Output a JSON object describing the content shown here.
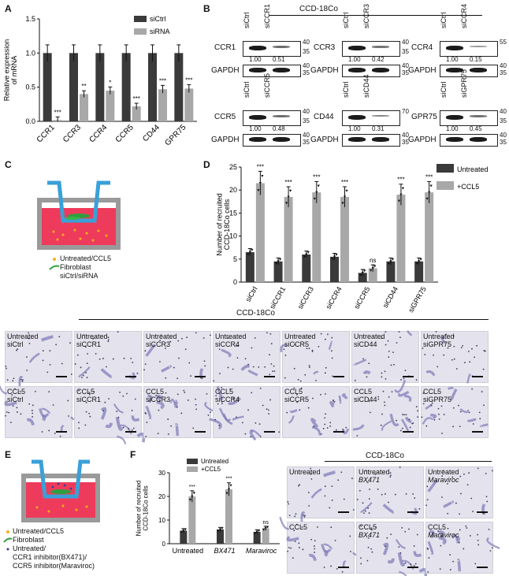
{
  "panels": {
    "A": "A",
    "B": "B",
    "C": "C",
    "D": "D",
    "E": "E",
    "F": "F"
  },
  "chart_data": [
    {
      "panel": "A",
      "type": "bar",
      "ylabel": "Relative expression of mRNA",
      "ylim": [
        0,
        1.5
      ],
      "yticks": [
        "0.0",
        "0.5",
        "1.0",
        "1.5"
      ],
      "categories": [
        "CCR1",
        "CCR3",
        "CCR4",
        "CCR5",
        "CD44",
        "GPR75"
      ],
      "series": [
        {
          "name": "siCtrl",
          "color": "#3a3a3a",
          "values": [
            1.0,
            1.0,
            1.0,
            1.0,
            1.0,
            1.0
          ]
        },
        {
          "name": "siRNA",
          "color": "#a8a8a8",
          "values": [
            0.02,
            0.4,
            0.45,
            0.22,
            0.47,
            0.48
          ]
        }
      ],
      "significance": [
        "***",
        "**",
        "*",
        "***",
        "***",
        "***"
      ]
    },
    {
      "panel": "D",
      "type": "bar",
      "ylabel": "Number of recruited CCD-18Co cells",
      "ylim": [
        0,
        25
      ],
      "yticks": [
        "0",
        "5",
        "10",
        "15",
        "20",
        "25"
      ],
      "categories": [
        "siCtrl",
        "siCCR1",
        "siCCR3",
        "siCCR4",
        "siCCR5",
        "siCD44",
        "siGPR75"
      ],
      "series": [
        {
          "name": "Untreated",
          "color": "#3a3a3a",
          "values": [
            6.5,
            4.5,
            6.0,
            5.5,
            2.0,
            4.5,
            4.5
          ]
        },
        {
          "name": "+CCL5",
          "color": "#a8a8a8",
          "values": [
            21.5,
            18.5,
            19.5,
            18.5,
            3.0,
            19.0,
            19.5
          ]
        }
      ],
      "significance": [
        "***",
        "***",
        "***",
        "***",
        "ns",
        "***",
        "***"
      ]
    },
    {
      "panel": "F",
      "type": "bar",
      "ylabel": "Number of recruited CCD-18Co cells",
      "ylim": [
        0,
        30
      ],
      "yticks": [
        "0",
        "10",
        "20",
        "30"
      ],
      "categories": [
        "Untreated",
        "BX471",
        "Maraviroc"
      ],
      "series": [
        {
          "name": "Untreated",
          "color": "#3a3a3a",
          "values": [
            5.5,
            6.0,
            5.0
          ]
        },
        {
          "name": "+CCL5",
          "color": "#a8a8a8",
          "values": [
            20.0,
            23.0,
            6.5
          ]
        }
      ],
      "significance": [
        "***",
        "***",
        "ns"
      ]
    }
  ],
  "westerns": {
    "header": "CCD-18Co",
    "loading": "GAPDH",
    "blots": [
      {
        "target": "CCR1",
        "lanes": [
          "siCtrl",
          "siCCR1"
        ],
        "values": [
          "1.00",
          "0.51"
        ],
        "markers": [
          "40",
          "35"
        ],
        "gmarkers": [
          "40",
          "35"
        ]
      },
      {
        "target": "CCR3",
        "lanes": [
          "siCtrl",
          "siCCR3"
        ],
        "values": [
          "1.00",
          "0.42"
        ],
        "markers": [
          "40",
          "35"
        ],
        "gmarkers": [
          "40",
          "35"
        ]
      },
      {
        "target": "CCR4",
        "lanes": [
          "siCtrl",
          "siCCR4"
        ],
        "values": [
          "1.00",
          "0.15"
        ],
        "markers": [
          "55",
          ""
        ],
        "gmarkers": [
          "40",
          "35"
        ]
      },
      {
        "target": "CCR5",
        "lanes": [
          "siCtrl",
          "siCCR5"
        ],
        "values": [
          "1.00",
          "0.48"
        ],
        "markers": [
          "40",
          "35"
        ],
        "gmarkers": [
          "40",
          "35"
        ]
      },
      {
        "target": "CD44",
        "lanes": [
          "siCtrl",
          "siCD44"
        ],
        "values": [
          "1.00",
          "0.31"
        ],
        "markers": [
          "70",
          ""
        ],
        "gmarkers": [
          "40",
          "35"
        ]
      },
      {
        "target": "GPR75",
        "lanes": [
          "siCtrl",
          "siGPR75"
        ],
        "values": [
          "1.00",
          "0.45"
        ],
        "markers": [
          "40",
          "35"
        ],
        "gmarkers": [
          "40",
          "35"
        ]
      }
    ]
  },
  "schematic_c": {
    "legend": [
      "Untreated/CCL5",
      "Fibroblast",
      "siCtrl/siRNA"
    ]
  },
  "schematic_e": {
    "legend": [
      "Untreated/CCL5",
      "Fibroblast",
      "Untreated/",
      "CCR1 inhibitor(BX471)/",
      "CCR5 inhibitor(Maraviroc)"
    ]
  },
  "micrographs_d": {
    "header": "CCD-18Co",
    "row1": [
      [
        "Untreated",
        "siCtrl"
      ],
      [
        "Untreated",
        "siCCR1"
      ],
      [
        "Untreated",
        "siCCR3"
      ],
      [
        "Untreated",
        "siCCR4"
      ],
      [
        "Untreated",
        "siCCR5"
      ],
      [
        "Untreated",
        "siCD44"
      ],
      [
        "Untreated",
        "siGPR75"
      ]
    ],
    "row2": [
      [
        "CCL5",
        "siCtrl"
      ],
      [
        "CCL5",
        "siCCR1"
      ],
      [
        "CCL5",
        "siCCR3"
      ],
      [
        "CCL5",
        "siCCR4"
      ],
      [
        "CCL5",
        "siCCR5"
      ],
      [
        "CCL5",
        "siCD44"
      ],
      [
        "CCL5",
        "siGPR75"
      ]
    ]
  },
  "micrographs_f": {
    "header": "CCD-18Co",
    "row1": [
      [
        "Untreated",
        ""
      ],
      [
        "Untreated",
        "BX471"
      ],
      [
        "Untreated",
        "Maraviroc"
      ]
    ],
    "row2": [
      [
        "CCL5",
        ""
      ],
      [
        "CCL5",
        "BX471"
      ],
      [
        "CCL5",
        "Maraviroc"
      ]
    ]
  }
}
